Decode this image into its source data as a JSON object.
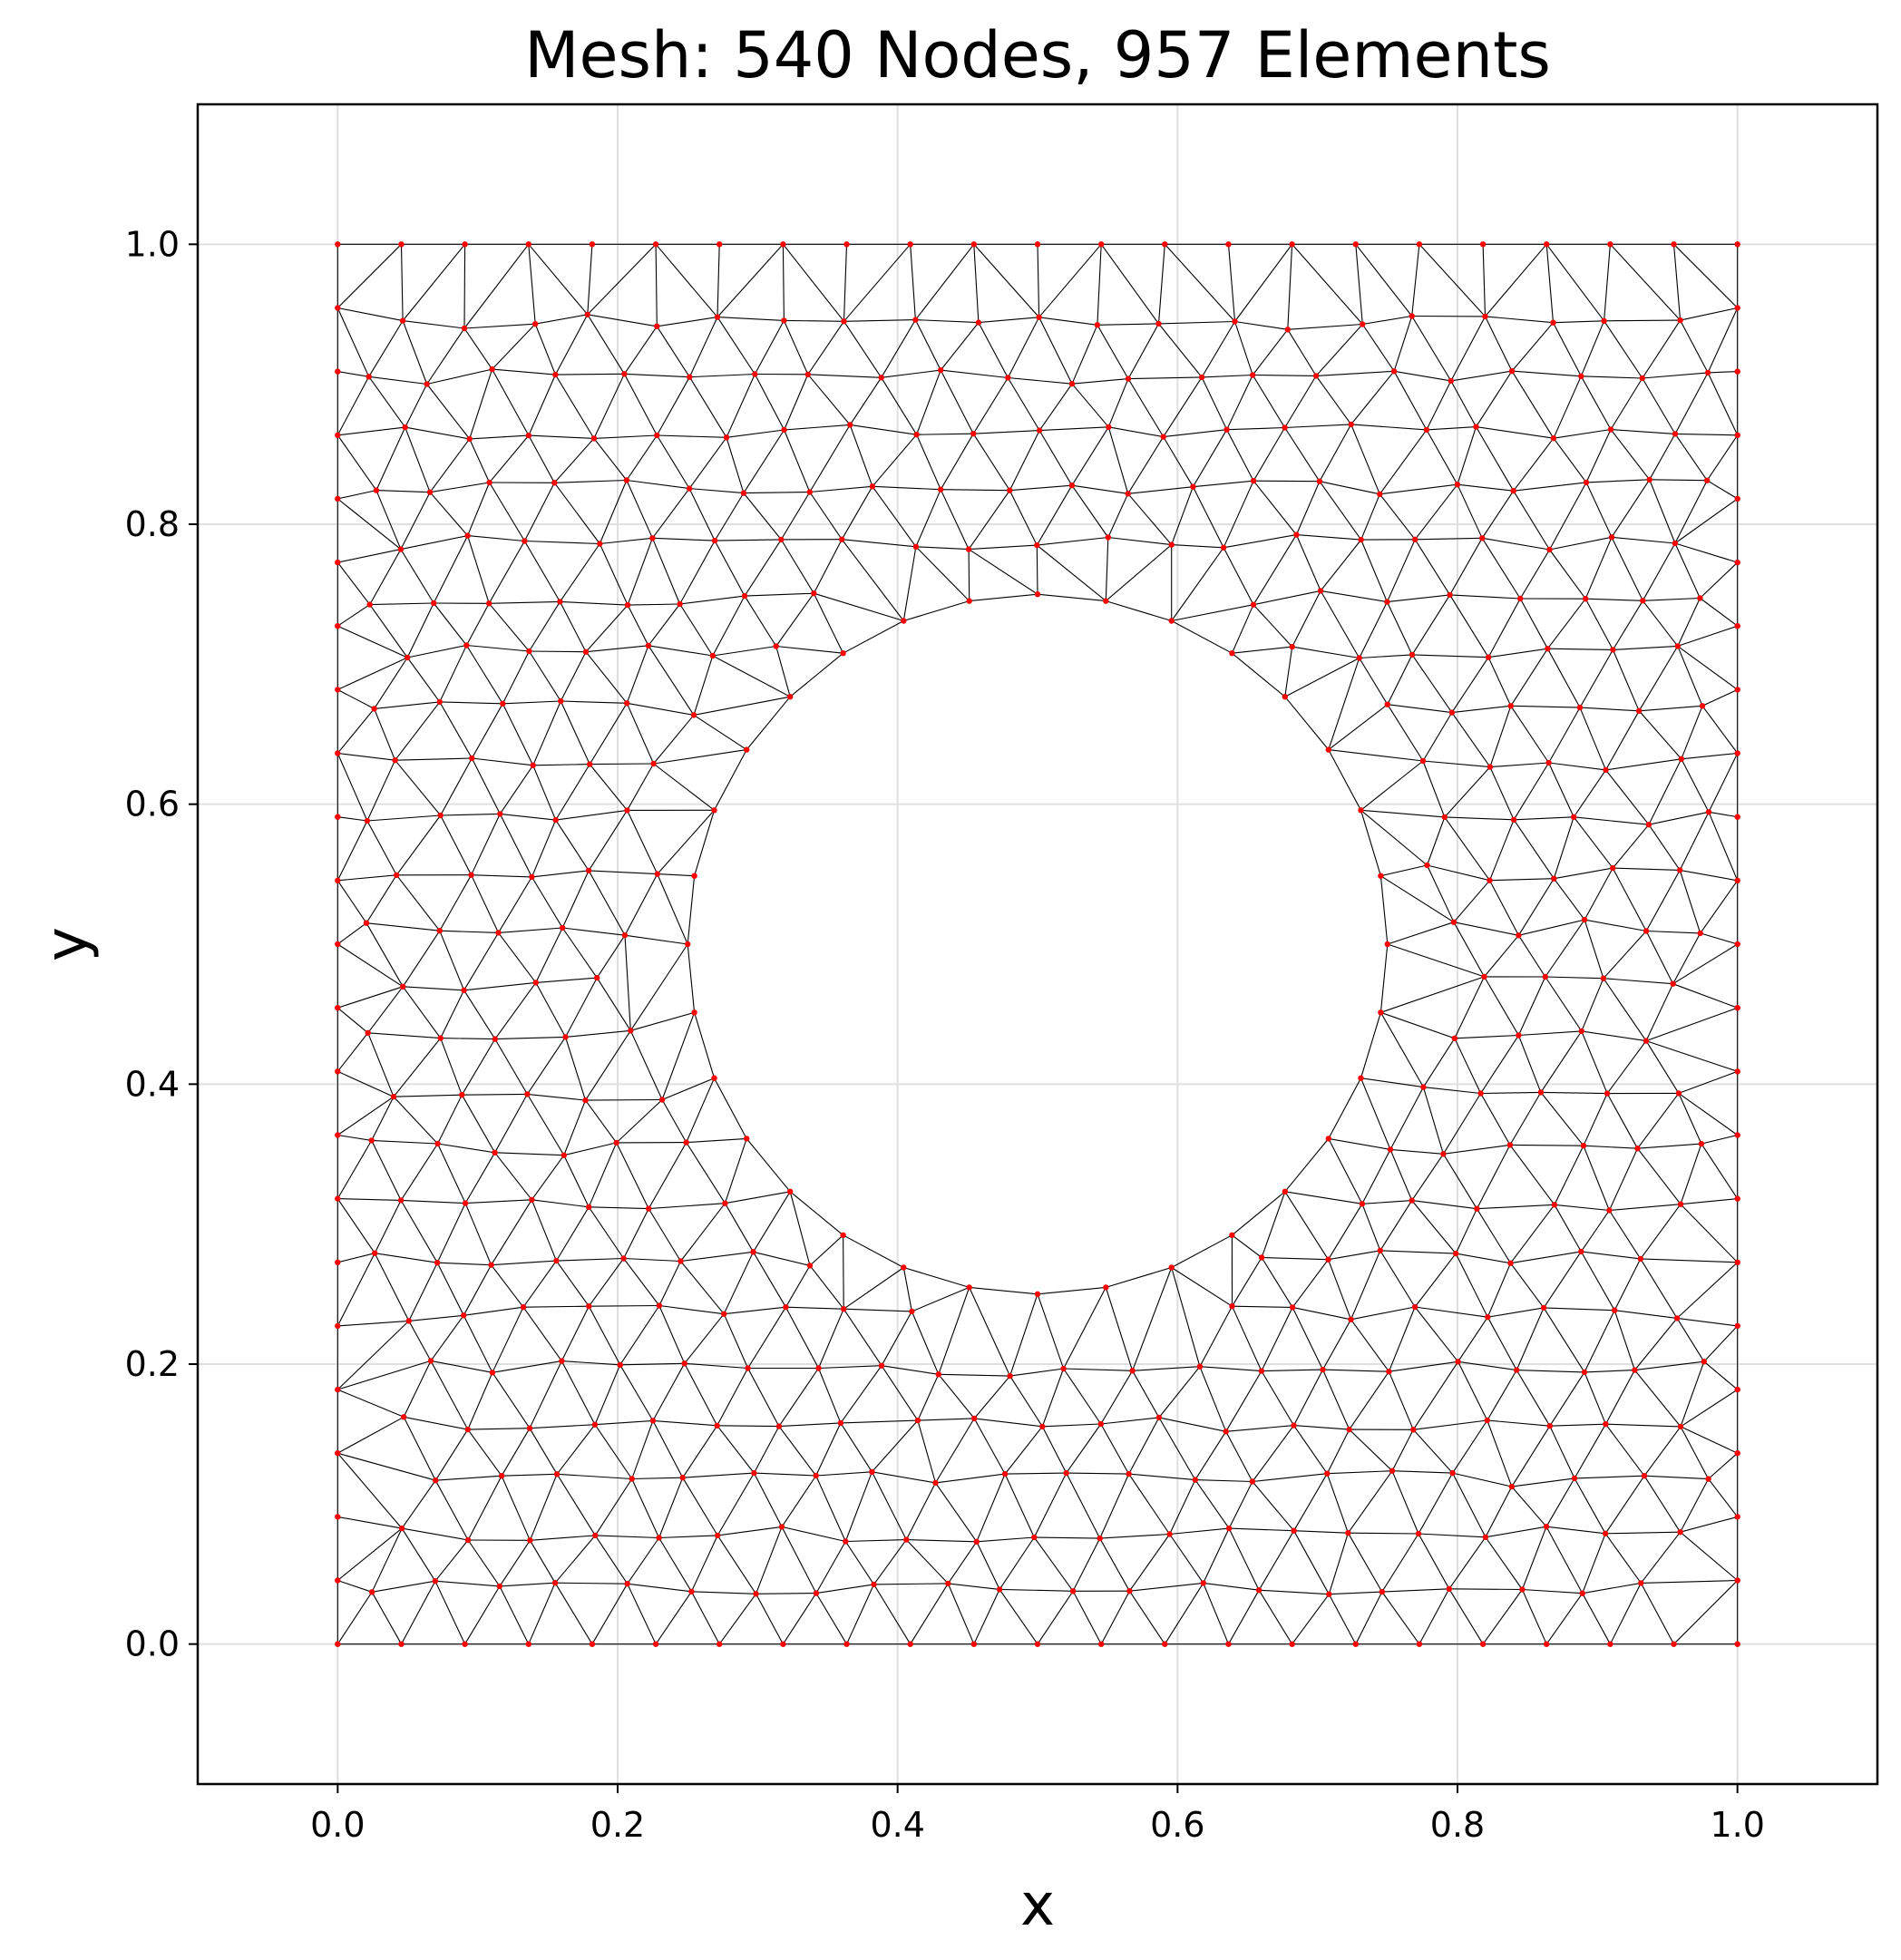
{
  "chart_data": {
    "type": "scatter",
    "title": "Mesh: 540 Nodes, 957 Elements",
    "xlabel": "x",
    "ylabel": "y",
    "xlim": [
      -0.1,
      1.1
    ],
    "ylim": [
      -0.1,
      1.1
    ],
    "xticks": [
      0.0,
      0.2,
      0.4,
      0.6,
      0.8,
      1.0
    ],
    "yticks": [
      0.0,
      0.2,
      0.4,
      0.6,
      0.8,
      1.0
    ],
    "xtick_labels": [
      "0.0",
      "0.2",
      "0.4",
      "0.6",
      "0.8",
      "1.0"
    ],
    "ytick_labels": [
      "0.0",
      "0.2",
      "0.4",
      "0.6",
      "0.8",
      "1.0"
    ],
    "grid": true,
    "domain": {
      "square": [
        0.0,
        1.0,
        0.0,
        1.0
      ],
      "circular_hole": {
        "center": [
          0.5,
          0.5
        ],
        "radius": 0.25
      }
    },
    "node_count": 540,
    "element_count": 957,
    "node_color": "#ff0000",
    "edge_color": "#000000"
  }
}
